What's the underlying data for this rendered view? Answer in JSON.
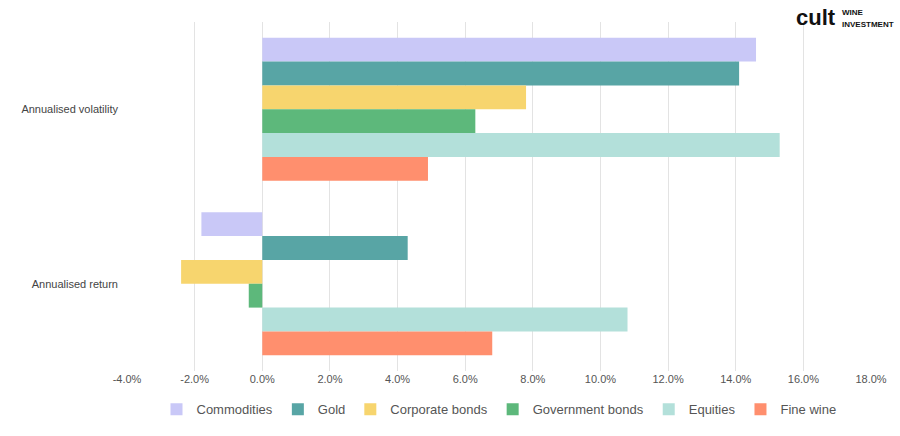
{
  "chart_data": {
    "type": "bar",
    "orientation": "horizontal",
    "categories": [
      "Annualised volatility",
      "Annualised return"
    ],
    "series": [
      {
        "name": "Commodities",
        "color": "#c9c8f7",
        "values": [
          14.6,
          -1.8
        ]
      },
      {
        "name": "Gold",
        "color": "#58a5a5",
        "values": [
          14.1,
          4.3
        ]
      },
      {
        "name": "Corporate bonds",
        "color": "#f7d56e",
        "values": [
          7.8,
          -2.4
        ]
      },
      {
        "name": "Government bonds",
        "color": "#5db87b",
        "values": [
          6.3,
          -0.4
        ]
      },
      {
        "name": "Equities",
        "color": "#b3e0da",
        "values": [
          15.3,
          10.8
        ]
      },
      {
        "name": "Fine wine",
        "color": "#ff8f6e",
        "values": [
          4.9,
          6.8
        ]
      }
    ],
    "xlim": [
      -4,
      18
    ],
    "xticks": [
      {
        "value": -4,
        "label": "-4.0%"
      },
      {
        "value": -2,
        "label": "-2.0%"
      },
      {
        "value": 0,
        "label": "0.0%"
      },
      {
        "value": 2,
        "label": "2.0%"
      },
      {
        "value": 4,
        "label": "4.0%"
      },
      {
        "value": 6,
        "label": "6.0%"
      },
      {
        "value": 8,
        "label": "8.0%"
      },
      {
        "value": 10,
        "label": "10.0%"
      },
      {
        "value": 12,
        "label": "12.0%"
      },
      {
        "value": 14,
        "label": "14.0%"
      },
      {
        "value": 16,
        "label": "16.0%"
      },
      {
        "value": 18,
        "label": "18.0%"
      }
    ],
    "grid": true,
    "legend": "bottom",
    "annotations": [
      "cult",
      "WINE",
      "INVESTMENT"
    ]
  }
}
